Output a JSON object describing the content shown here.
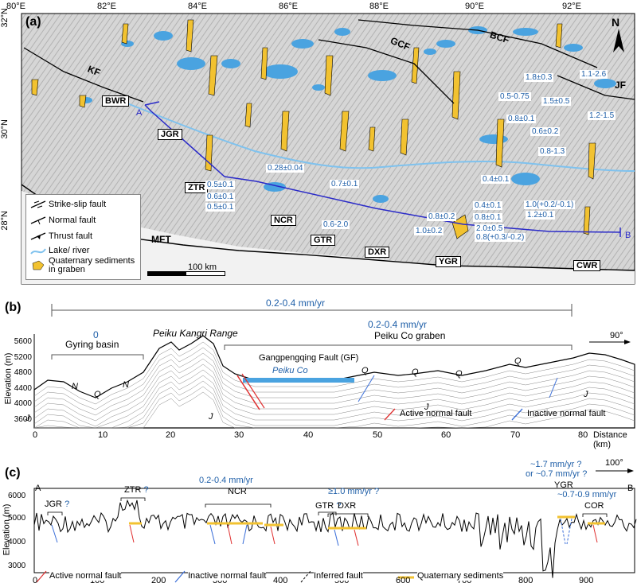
{
  "panel_a": {
    "label": "(a)",
    "lon_ticks": [
      "80°E",
      "82°E",
      "84°E",
      "86°E",
      "88°E",
      "90°E",
      "92°E"
    ],
    "lat_ticks": [
      "32°N",
      "30°N",
      "28°N"
    ],
    "north": "N",
    "faults": [
      "KF",
      "GCF",
      "BCF",
      "JF",
      "MFT"
    ],
    "rifts": [
      "BWR",
      "JGR",
      "ZTR",
      "NCR",
      "GTR",
      "DXR",
      "YGR",
      "CWR"
    ],
    "profile_points": [
      "A",
      "B"
    ],
    "rates": [
      "1.8±0.3",
      "1.1-2.6",
      "0.5-0.75",
      "1.5±0.5",
      "0.8±0.1",
      "0.6±0.2",
      "1.2-1.5",
      "0.8-1.3",
      "0.4±0.1",
      "0.28±0.04",
      "0.7±0.1",
      "0.4±0.1",
      "0.5±0.1",
      "0.6±0.1",
      "0.5±0.1",
      "0.8±0.1",
      "1.0(+0.2/-0.1)",
      "0.8±0.2",
      "1.2±0.1",
      "0.6-2.0",
      "1.0±0.2",
      "2.0±0.5",
      "0.8(+0.3/-0.2)"
    ],
    "legend": [
      "Strike-slip fault",
      "Normal fault",
      "Thrust fault",
      "Lake/ river",
      "Quaternary sediments in graben"
    ],
    "scale": "100 km"
  },
  "panel_b": {
    "label": "(b)",
    "top_rate": "0.2-0.4 mm/yr",
    "gyring_rate": "0",
    "gyring_name": "Gyring basin",
    "range_name": "Peiku Kangri Range",
    "graben_rate": "0.2-0.4 mm/yr",
    "graben_name": "Peiku Co graben",
    "fault_name": "Gangpengqing Fault (GF)",
    "lake_name": "Peiku Co",
    "azimuth": "90°",
    "ylabel": "Elevation (m)",
    "xlabel": "Distance (km)",
    "yticks": [
      "5600",
      "5200",
      "4800",
      "4400",
      "4000",
      "3600"
    ],
    "xticks": [
      "0",
      "10",
      "20",
      "30",
      "40",
      "50",
      "60",
      "70",
      "80"
    ],
    "units": [
      "N",
      "Q",
      "N",
      "J",
      "J",
      "Q",
      "Q",
      "Q",
      "Q",
      "J",
      "J"
    ],
    "legend": [
      "Active normal fault",
      "Inactive normal fault"
    ]
  },
  "panel_c": {
    "label": "(c)",
    "azimuth": "100°",
    "end_a": "A",
    "end_b": "B",
    "ylabel": "Elevation (m)",
    "yticks": [
      "6000",
      "5000",
      "4000",
      "3000"
    ],
    "xticks": [
      "0",
      "100",
      "200",
      "300",
      "400",
      "500",
      "600",
      "700",
      "800",
      "900"
    ],
    "rift_labels": [
      {
        "name": "JGR",
        "q": "?",
        "rate": ""
      },
      {
        "name": "ZTR",
        "q": "?",
        "rate": ""
      },
      {
        "name": "NCR",
        "q": "",
        "rate": "0.2-0.4 mm/yr"
      },
      {
        "name": "GTR",
        "q": "?",
        "rate": ""
      },
      {
        "name": "DXR",
        "q": "",
        "rate": "≥1.0 mm/yr ?"
      },
      {
        "name": "YGR",
        "q": "",
        "rate": "~1.7 mm/yr ?"
      },
      {
        "name": "COR",
        "q": "",
        "rate": "~0.7-0.9 mm/yr"
      }
    ],
    "ygr_rate2": "or ~0.7 mm/yr ?",
    "legend": [
      "Active normal fault",
      "Inactive normal fault",
      "Inferred fault",
      "Quaternary sediments"
    ]
  },
  "colors": {
    "water": "#4aa3e0",
    "sediment": "#f2c230",
    "active": "#e03030",
    "inactive": "#3a6ed8",
    "profile": "#2a2ac8",
    "rate_text": "#1f5fa8"
  }
}
